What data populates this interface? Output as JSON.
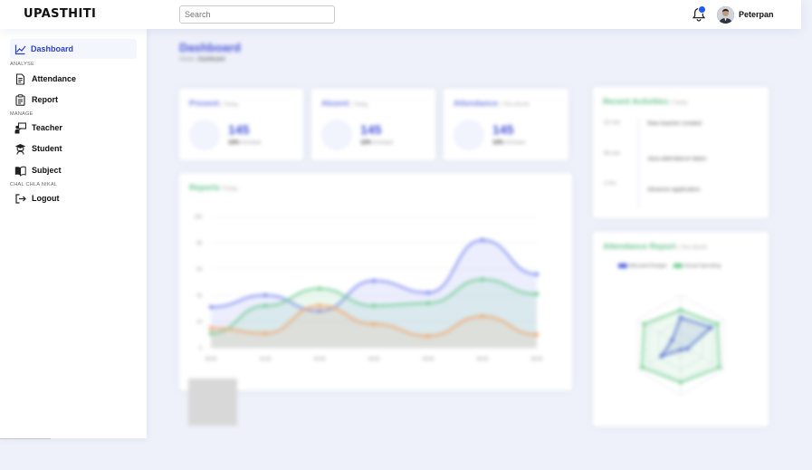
{
  "header": {
    "logo": "UPASTHITI",
    "search_placeholder": "Search",
    "username": "Peterpan"
  },
  "sidebar": {
    "items": [
      {
        "label": "Dashboard",
        "icon": "chart-icon"
      },
      {
        "label": "Attendance",
        "icon": "document-icon"
      },
      {
        "label": "Report",
        "icon": "clipboard-icon"
      },
      {
        "label": "Teacher",
        "icon": "teacher-icon"
      },
      {
        "label": "Student",
        "icon": "graduation-icon"
      },
      {
        "label": "Subject",
        "icon": "book-icon"
      },
      {
        "label": "Logout",
        "icon": "logout-icon"
      }
    ],
    "sections": [
      "ANALYSE",
      "MANAGE",
      "CHAL CHLA NIKAL"
    ]
  },
  "main": {
    "title": "Dashboard",
    "breadcrumb": [
      "Home",
      "Dashboard"
    ],
    "kpis": [
      {
        "title": "Present",
        "period": "| Today",
        "value": "145",
        "change": "12%",
        "change_label": "increase"
      },
      {
        "title": "Absent",
        "period": "| Today",
        "value": "145",
        "change": "12%",
        "change_label": "increase"
      },
      {
        "title": "Attendance",
        "period": "| This Month",
        "value": "145",
        "change": "12%",
        "change_label": "increase"
      }
    ],
    "activities": {
      "title": "Recent Activities",
      "period": "| Today",
      "items": [
        {
          "time": "32 min",
          "text": "New teacher created"
        },
        {
          "time": "56 min",
          "text": "Java attendance taken"
        },
        {
          "time": "2 hrs",
          "text": "Absence application"
        }
      ]
    },
    "reports": {
      "title": "Reports",
      "period": "/Today"
    },
    "attendance_report": {
      "title": "Attendance Report",
      "period": "| This Month"
    }
  },
  "chart_data": [
    {
      "type": "area",
      "categories": [
        "00:00",
        "01:00",
        "02:00",
        "03:00",
        "04:00",
        "05:00",
        "06:00"
      ],
      "yticks": [
        0,
        20,
        40,
        60,
        80,
        100
      ],
      "ylim": [
        0,
        100
      ],
      "series": [
        {
          "color": "#7b86f0",
          "values": [
            31,
            40,
            28,
            51,
            42,
            82,
            56
          ]
        },
        {
          "color": "#6ccb8c",
          "values": [
            11,
            32,
            45,
            32,
            34,
            52,
            41
          ]
        },
        {
          "color": "#f4a46a",
          "values": [
            15,
            11,
            32,
            18,
            9,
            24,
            10
          ]
        }
      ],
      "grid": true
    },
    {
      "type": "radar",
      "legend": [
        "Allocated Budget",
        "Actual Spending"
      ],
      "legend_placement": "top",
      "series": [
        {
          "name": "Allocated Budget",
          "color": "#4a5ed8",
          "values": [
            0.55,
            0.7,
            0.15,
            0.1,
            0.45,
            0.2
          ]
        },
        {
          "name": "Actual Spending",
          "color": "#6ccb8c",
          "values": [
            0.7,
            0.85,
            0.9,
            0.75,
            0.9,
            0.85
          ]
        }
      ]
    }
  ]
}
